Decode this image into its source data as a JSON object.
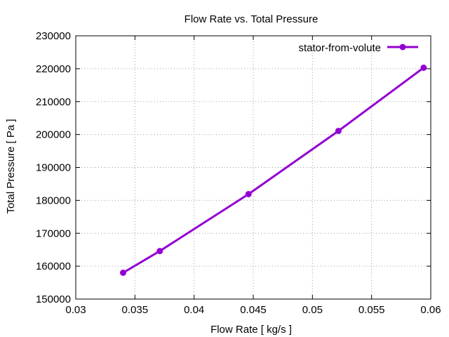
{
  "chart_data": {
    "type": "line",
    "title": "Flow Rate vs. Total Pressure",
    "xlabel": "Flow Rate [ kg/s ]",
    "ylabel": "Total Pressure [ Pa ]",
    "xlim": [
      0.03,
      0.06
    ],
    "ylim": [
      150000,
      230000
    ],
    "x_ticks": [
      0.03,
      0.035,
      0.04,
      0.045,
      0.05,
      0.055,
      0.06
    ],
    "x_tick_labels": [
      "0.03",
      "0.035",
      "0.04",
      "0.045",
      "0.05",
      "0.055",
      "0.06"
    ],
    "y_ticks": [
      150000,
      160000,
      170000,
      180000,
      190000,
      200000,
      210000,
      220000,
      230000
    ],
    "y_tick_labels": [
      "150000",
      "160000",
      "170000",
      "180000",
      "190000",
      "200000",
      "210000",
      "220000",
      "230000"
    ],
    "grid": true,
    "legend_position": "top-right",
    "series": [
      {
        "name": "stator-from-volute",
        "color": "#9400d3",
        "marker": "circle",
        "x": [
          0.034,
          0.0371,
          0.0446,
          0.0522,
          0.0594
        ],
        "y": [
          158000,
          164600,
          181900,
          201100,
          220300
        ]
      }
    ]
  }
}
